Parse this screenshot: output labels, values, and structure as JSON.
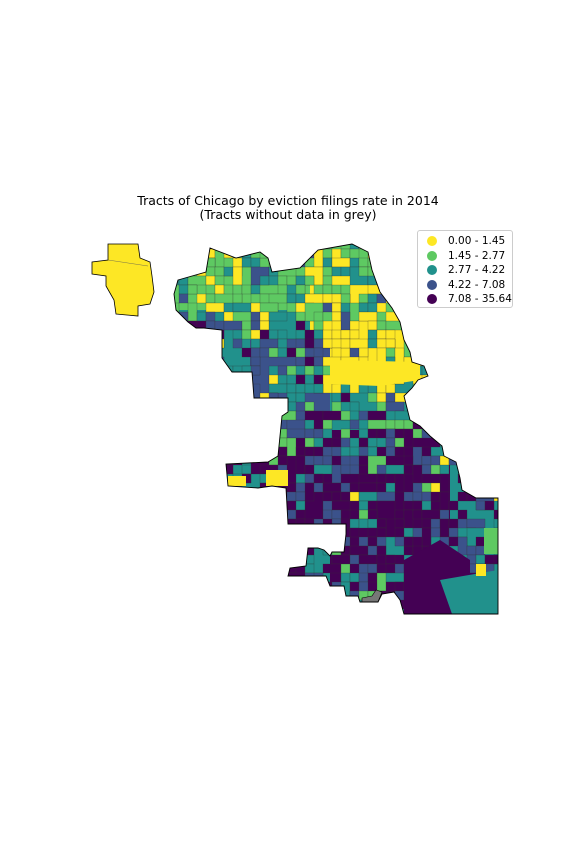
{
  "title": {
    "line1": "Tracts of Chicago by eviction filings rate in 2014",
    "line2": "(Tracts without data in grey)"
  },
  "legend": {
    "placement": "top-right",
    "items": [
      {
        "label": "0.00 - 1.45",
        "color": "#fde725"
      },
      {
        "label": "1.45 - 2.77",
        "color": "#5ec962"
      },
      {
        "label": "2.77 - 4.22",
        "color": "#21918c"
      },
      {
        "label": "4.22 - 7.08",
        "color": "#3b528b"
      },
      {
        "label": "7.08 - 35.64",
        "color": "#440154"
      }
    ]
  },
  "no_data_color": "#777777",
  "map": {
    "type": "choropleth",
    "classes": 5,
    "palette": "viridis (reversed)"
  }
}
